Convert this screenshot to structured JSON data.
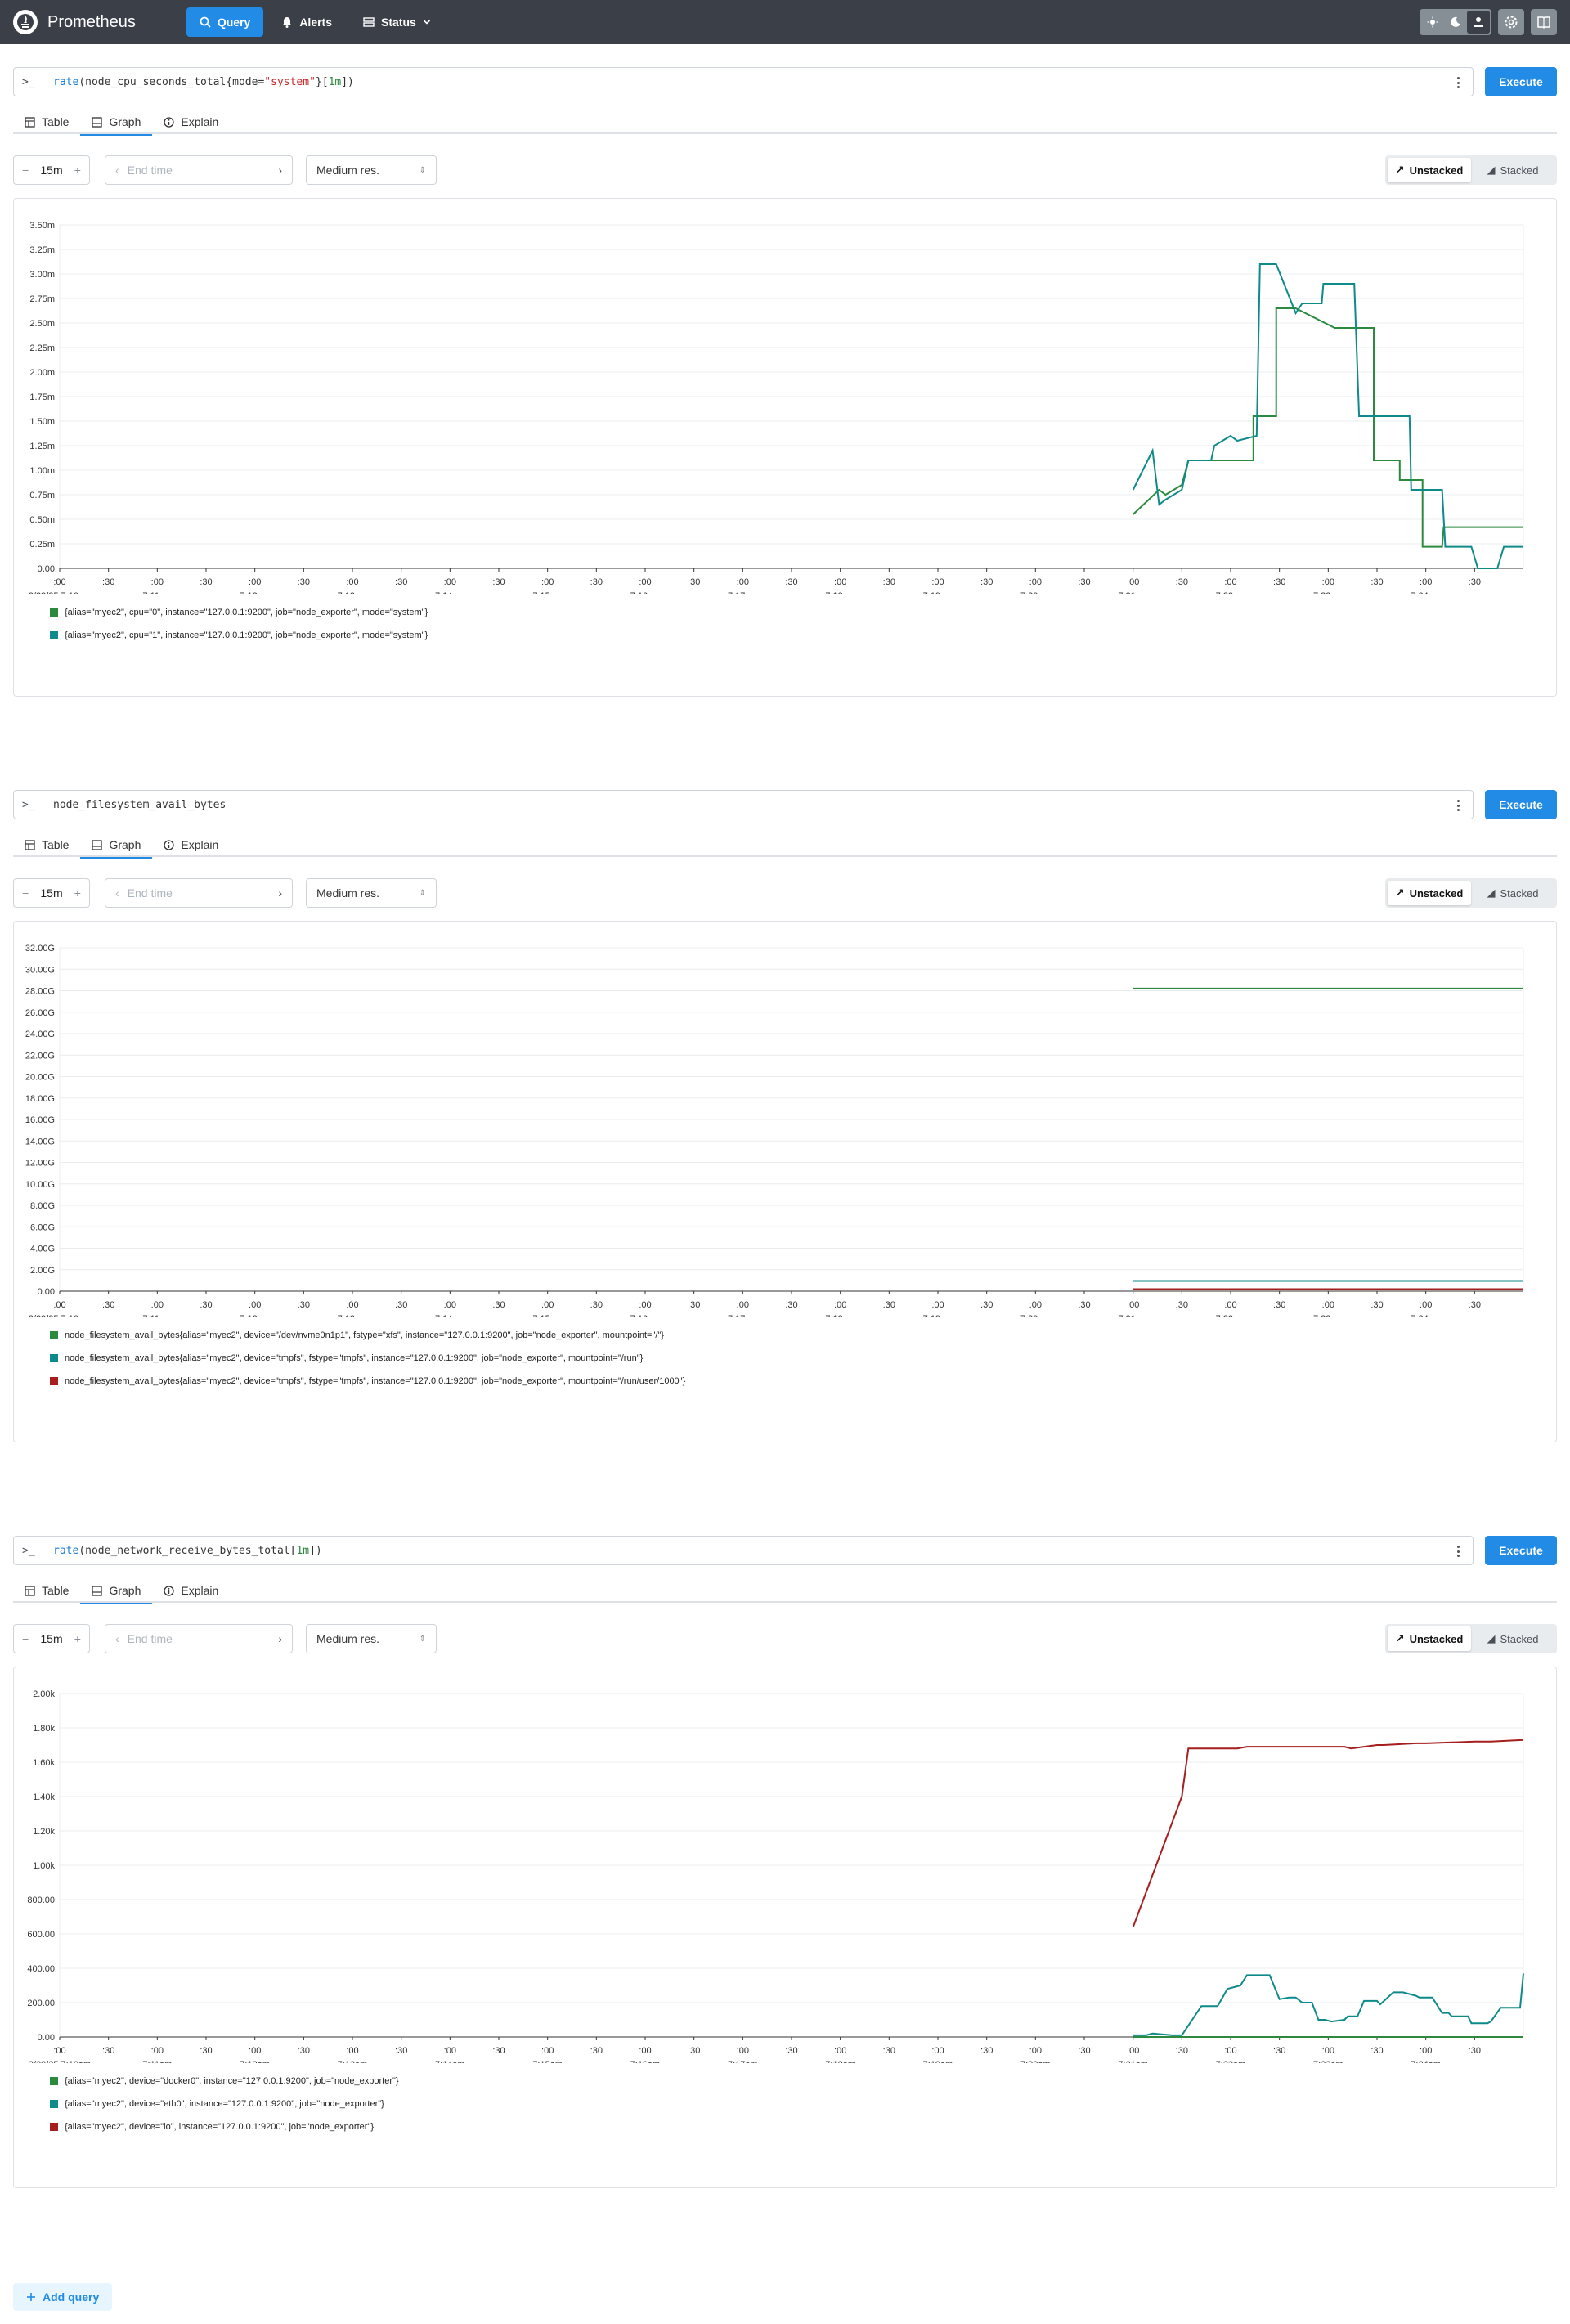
{
  "app": {
    "title": "Prometheus",
    "nav": {
      "query": "Query",
      "alerts": "Alerts",
      "status": "Status"
    },
    "theme_options": [
      "light-icon",
      "dark-icon",
      "auto-icon"
    ]
  },
  "common": {
    "execute_label": "Execute",
    "tab_table": "Table",
    "tab_graph": "Graph",
    "tab_explain": "Explain",
    "range": "15m",
    "end_time_placeholder": "End time",
    "resolution": "Medium res.",
    "unstacked": "Unstacked",
    "stacked": "Stacked",
    "add_query": "Add query",
    "prompt": ">_"
  },
  "panels": [
    {
      "expression": "rate(node_cpu_seconds_total{mode=\"system\"}[1m])",
      "expr_parts": [
        {
          "t": "rate",
          "c": "fn"
        },
        {
          "t": "(node_cpu_seconds_total{mode=",
          "c": ""
        },
        {
          "t": "\"system\"",
          "c": "str"
        },
        {
          "t": "}[",
          "c": ""
        },
        {
          "t": "1m",
          "c": "num"
        },
        {
          "t": "])",
          "c": ""
        }
      ],
      "chart_data": {
        "type": "line",
        "ylim": [
          0,
          0.0035
        ],
        "ytick_values": [
          0,
          0.00025,
          0.0005,
          0.00075,
          0.001,
          0.00125,
          0.0015,
          0.00175,
          0.002,
          0.00225,
          0.0025,
          0.00275,
          0.003,
          0.00325,
          0.0035
        ],
        "ytick_labels": [
          "0.00",
          "0.25m",
          "0.50m",
          "0.75m",
          "1.00m",
          "1.25m",
          "1.50m",
          "1.75m",
          "2.00m",
          "2.25m",
          "2.50m",
          "2.75m",
          "3.00m",
          "3.25m",
          "3.50m"
        ],
        "x_minor_labels": [
          ":00",
          ":30"
        ],
        "x_major_labels": [
          "2/28/25 7:10am",
          "7:11am",
          "7:12am",
          "7:13am",
          "7:14am",
          "7:15am",
          "7:16am",
          "7:17am",
          "7:18am",
          "7:19am",
          "7:20am",
          "7:21am",
          "7:22am",
          "7:23am",
          "7:24am"
        ],
        "series": [
          {
            "name": "{alias=\"myec2\", cpu=\"0\", instance=\"127.0.0.1:9200\", job=\"node_exporter\", mode=\"system\"}",
            "color": "#2b8a3e",
            "x": [
              660,
              676,
              680,
              690,
              694,
              704,
              710,
              724,
              734,
              734,
              748,
              748,
              760,
              784,
              785,
              808,
              808,
              824,
              824,
              838,
              838,
              850,
              851,
              900
            ],
            "values": [
              0.00055,
              0.0008,
              0.00075,
              0.00085,
              0.0011,
              0.0011,
              0.0011,
              0.0011,
              0.0011,
              0.00155,
              0.00155,
              0.00265,
              0.00265,
              0.00245,
              0.00245,
              0.00245,
              0.0011,
              0.0011,
              0.0009,
              0.0009,
              0.00022,
              0.00022,
              0.00042,
              0.00042
            ]
          },
          {
            "name": "{alias=\"myec2\", cpu=\"1\", instance=\"127.0.0.1:9200\", job=\"node_exporter\", mode=\"system\"}",
            "color": "#0f8a8a",
            "x": [
              660,
              672,
              676,
              680,
              690,
              694,
              708,
              710,
              720,
              724,
              736,
              738,
              748,
              760,
              764,
              776,
              777,
              796,
              799,
              830,
              831,
              850,
              852,
              868,
              872,
              884,
              888,
              900
            ],
            "values": [
              0.0008,
              0.0012,
              0.00065,
              0.0007,
              0.0008,
              0.0011,
              0.0011,
              0.00125,
              0.00135,
              0.0013,
              0.00135,
              0.0031,
              0.0031,
              0.0026,
              0.0027,
              0.0027,
              0.0029,
              0.0029,
              0.00155,
              0.00155,
              0.0008,
              0.0008,
              0.00022,
              0.00022,
              0,
              0,
              0.00022,
              0.00022
            ]
          }
        ]
      }
    },
    {
      "expression": "node_filesystem_avail_bytes",
      "expr_parts": [
        {
          "t": "node_filesystem_avail_bytes",
          "c": ""
        }
      ],
      "chart_data": {
        "type": "line",
        "ylim": [
          0,
          32000000000
        ],
        "ytick_values": [
          0,
          2000000000,
          4000000000,
          6000000000,
          8000000000,
          10000000000,
          12000000000,
          14000000000,
          16000000000,
          18000000000,
          20000000000,
          22000000000,
          24000000000,
          26000000000,
          28000000000,
          30000000000,
          32000000000
        ],
        "ytick_labels": [
          "0.00",
          "2.00G",
          "4.00G",
          "6.00G",
          "8.00G",
          "10.00G",
          "12.00G",
          "14.00G",
          "16.00G",
          "18.00G",
          "20.00G",
          "22.00G",
          "24.00G",
          "26.00G",
          "28.00G",
          "30.00G",
          "32.00G"
        ],
        "x_minor_labels": [
          ":00",
          ":30"
        ],
        "x_major_labels": [
          "2/28/25 7:10am",
          "7:11am",
          "7:12am",
          "7:13am",
          "7:14am",
          "7:15am",
          "7:16am",
          "7:17am",
          "7:18am",
          "7:19am",
          "7:20am",
          "7:21am",
          "7:22am",
          "7:23am",
          "7:24am"
        ],
        "series": [
          {
            "name": "node_filesystem_avail_bytes{alias=\"myec2\", device=\"/dev/nvme0n1p1\", fstype=\"xfs\", instance=\"127.0.0.1:9200\", job=\"node_exporter\", mountpoint=\"/\"}",
            "color": "#2b8a3e",
            "x": [
              660,
              900
            ],
            "values": [
              28200000000,
              28200000000
            ]
          },
          {
            "name": "node_filesystem_avail_bytes{alias=\"myec2\", device=\"tmpfs\", fstype=\"tmpfs\", instance=\"127.0.0.1:9200\", job=\"node_exporter\", mountpoint=\"/run\"}",
            "color": "#0f8a8a",
            "x": [
              660,
              900
            ],
            "values": [
              950000000,
              950000000
            ]
          },
          {
            "name": "node_filesystem_avail_bytes{alias=\"myec2\", device=\"tmpfs\", fstype=\"tmpfs\", instance=\"127.0.0.1:9200\", job=\"node_exporter\", mountpoint=\"/run/user/1000\"}",
            "color": "#a61e1e",
            "x": [
              660,
              900
            ],
            "values": [
              190000000,
              190000000
            ]
          }
        ]
      }
    },
    {
      "expression": "rate(node_network_receive_bytes_total[1m])",
      "expr_parts": [
        {
          "t": "rate",
          "c": "fn"
        },
        {
          "t": "(node_network_receive_bytes_total[",
          "c": ""
        },
        {
          "t": "1m",
          "c": "num"
        },
        {
          "t": "])",
          "c": ""
        }
      ],
      "chart_data": {
        "type": "line",
        "ylim": [
          0,
          2000
        ],
        "ytick_values": [
          0,
          200,
          400,
          600,
          800,
          1000,
          1200,
          1400,
          1600,
          1800,
          2000
        ],
        "ytick_labels": [
          "0.00",
          "200.00",
          "400.00",
          "600.00",
          "800.00",
          "1.00k",
          "1.20k",
          "1.40k",
          "1.60k",
          "1.80k",
          "2.00k"
        ],
        "x_minor_labels": [
          ":00",
          ":30"
        ],
        "x_major_labels": [
          "2/28/25 7:10am",
          "7:11am",
          "7:12am",
          "7:13am",
          "7:14am",
          "7:15am",
          "7:16am",
          "7:17am",
          "7:18am",
          "7:19am",
          "7:20am",
          "7:21am",
          "7:22am",
          "7:23am",
          "7:24am"
        ],
        "series": [
          {
            "name": "{alias=\"myec2\", device=\"docker0\", instance=\"127.0.0.1:9200\", job=\"node_exporter\"}",
            "color": "#2b8a3e",
            "x": [
              660,
              900
            ],
            "values": [
              0,
              0
            ]
          },
          {
            "name": "{alias=\"myec2\", device=\"eth0\", instance=\"127.0.0.1:9200\", job=\"node_exporter\"}",
            "color": "#0f8a8a",
            "x": [
              660,
              668,
              672,
              684,
              690,
              702,
              706,
              712,
              718,
              726,
              730,
              736,
              744,
              750,
              756,
              760,
              764,
              770,
              774,
              778,
              782,
              790,
              792,
              798,
              802,
              810,
              812,
              820,
              826,
              834,
              836,
              844,
              850,
              854,
              856,
              866,
              868,
              878,
              880,
              886,
              890,
              898,
              900
            ],
            "values": [
              10,
              10,
              20,
              10,
              10,
              180,
              180,
              180,
              280,
              300,
              360,
              360,
              360,
              220,
              230,
              230,
              200,
              200,
              100,
              100,
              90,
              100,
              120,
              120,
              210,
              210,
              190,
              260,
              260,
              240,
              230,
              230,
              140,
              140,
              120,
              120,
              80,
              80,
              90,
              170,
              170,
              170,
              370
            ]
          },
          {
            "name": "{alias=\"myec2\", device=\"lo\", instance=\"127.0.0.1:9200\", job=\"node_exporter\"}",
            "color": "#a61e1e",
            "x": [
              660,
              690,
              694,
              724,
              730,
              760,
              770,
              790,
              794,
              810,
              814,
              834,
              840,
              870,
              880,
              900
            ],
            "values": [
              640,
              1400,
              1680,
              1680,
              1690,
              1690,
              1690,
              1690,
              1680,
              1700,
              1700,
              1710,
              1710,
              1720,
              1720,
              1730
            ]
          }
        ]
      }
    }
  ]
}
